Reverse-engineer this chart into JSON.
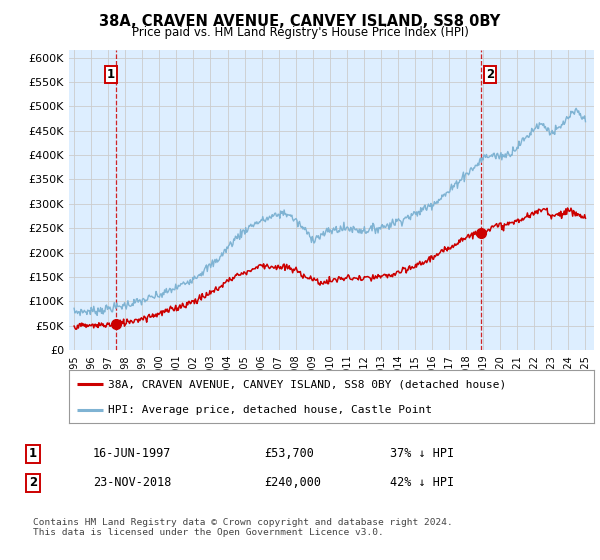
{
  "title1": "38A, CRAVEN AVENUE, CANVEY ISLAND, SS8 0BY",
  "title2": "Price paid vs. HM Land Registry's House Price Index (HPI)",
  "ylabel_ticks": [
    "£0",
    "£50K",
    "£100K",
    "£150K",
    "£200K",
    "£250K",
    "£300K",
    "£350K",
    "£400K",
    "£450K",
    "£500K",
    "£550K",
    "£600K"
  ],
  "ytick_values": [
    0,
    50000,
    100000,
    150000,
    200000,
    250000,
    300000,
    350000,
    400000,
    450000,
    500000,
    550000,
    600000
  ],
  "ylim": [
    0,
    615000
  ],
  "xlim_start": 1994.7,
  "xlim_end": 2025.5,
  "sale1_x": 1997.46,
  "sale1_y": 53700,
  "sale2_x": 2018.9,
  "sale2_y": 240000,
  "sale1_label": "1",
  "sale2_label": "2",
  "red_line_color": "#cc0000",
  "blue_line_color": "#7fb3d3",
  "dot_color": "#cc0000",
  "vline_color": "#cc0000",
  "grid_color": "#cccccc",
  "bg_color": "#ddeeff",
  "legend_label1": "38A, CRAVEN AVENUE, CANVEY ISLAND, SS8 0BY (detached house)",
  "legend_label2": "HPI: Average price, detached house, Castle Point",
  "note1_num": "1",
  "note1_date": "16-JUN-1997",
  "note1_price": "£53,700",
  "note1_hpi": "37% ↓ HPI",
  "note2_num": "2",
  "note2_date": "23-NOV-2018",
  "note2_price": "£240,000",
  "note2_hpi": "42% ↓ HPI",
  "footer": "Contains HM Land Registry data © Crown copyright and database right 2024.\nThis data is licensed under the Open Government Licence v3.0."
}
